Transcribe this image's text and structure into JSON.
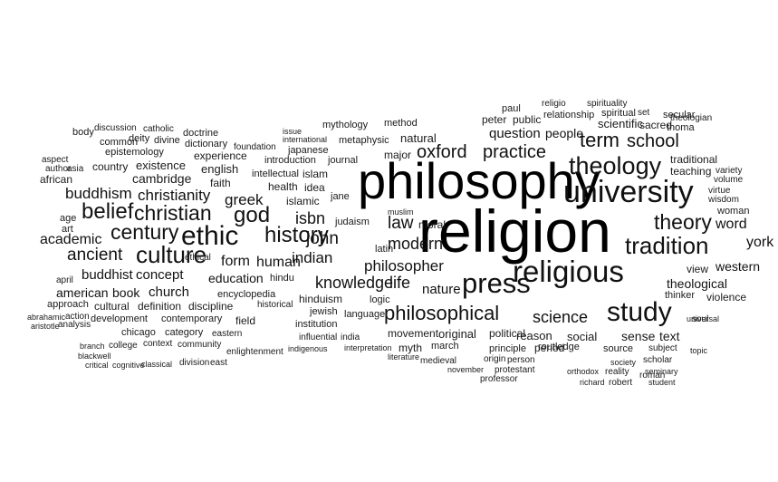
{
  "cloud": {
    "words": {
      "religion": "religion",
      "philosophy": "philosophy",
      "university": "university",
      "religious": "religious",
      "press": "press",
      "ethic": "ethic",
      "theology": "theology",
      "study": "study",
      "history": "history",
      "culture": "culture",
      "christian": "christian",
      "belief": "belief",
      "tradition": "tradition",
      "theory": "theory",
      "philosophical": "philosophical",
      "god": "god",
      "century": "century",
      "science": "science",
      "school": "school",
      "term": "term",
      "oxford": "oxford",
      "practice": "practice",
      "modern": "modern",
      "knowledge": "knowledge",
      "life": "life",
      "ancient": "ancient",
      "christianity": "christianity",
      "buddhism": "buddhism",
      "john": "john",
      "indian": "indian",
      "law": "law",
      "philosopher": "philosopher",
      "nature": "nature",
      "word": "word",
      "york": "york",
      "academic": "academic",
      "greek": "greek",
      "form": "form",
      "human": "human",
      "isbn": "isbn",
      "american": "american",
      "book": "book",
      "church": "church",
      "concept": "concept",
      "buddhist": "buddhist",
      "education": "education",
      "question": "question",
      "people": "people",
      "western": "western",
      "theological": "theological",
      "cambridge": "cambridge",
      "existence": "existence",
      "country": "country",
      "oxford_small": "oxford",
      "sense": "sense",
      "text": "text",
      "social": "social",
      "reason": "reason",
      "period": "period",
      "original": "original",
      "political": "political",
      "movement": "movement",
      "cultural": "cultural",
      "definition": "definition",
      "discipline": "discipline",
      "development": "development",
      "contemporary": "contemporary",
      "field": "field",
      "chicago": "chicago",
      "category": "category",
      "eastern": "eastern",
      "language": "language",
      "hinduism": "hinduism",
      "jewish": "jewish",
      "institution": "institution",
      "logic": "logic",
      "islamic": "islamic",
      "jane": "jane",
      "judaism": "judaism",
      "moral": "moral",
      "natural": "natural",
      "major": "major",
      "islam": "islam",
      "idea": "idea",
      "health": "health",
      "faith": "faith",
      "english": "english",
      "experience": "experience",
      "introduction": "introduction",
      "journal": "journal",
      "japanese": "japanese",
      "metaphysic": "metaphysic",
      "mythology": "mythology",
      "method": "method",
      "peter": "peter",
      "public": "public",
      "paul": "paul",
      "scientific": "scientific",
      "spiritual": "spiritual",
      "traditional": "traditional",
      "teaching": "teaching",
      "sacred": "sacred",
      "violence": "violence",
      "view": "view",
      "thinker": "thinker",
      "woman": "woman",
      "wisdom": "wisdom",
      "virtue": "virtue",
      "variety": "variety",
      "volume": "volume",
      "approach": "approach",
      "analysis": "analysis",
      "action": "action",
      "college": "college",
      "context": "context",
      "community": "community",
      "classical": "classical",
      "division": "division",
      "east": "east",
      "enlightenment": "enlightenment",
      "myth": "myth",
      "march": "march",
      "principle": "principle",
      "routledge": "routledge",
      "person": "person",
      "source": "source",
      "subject": "subject",
      "scholar": "scholar",
      "society": "society",
      "soul": "soul",
      "topic": "topic",
      "universal": "universal",
      "medieval": "medieval",
      "literature": "literature",
      "interpretation": "interpretation",
      "influential": "influential",
      "indigenous": "indigenous",
      "india": "india",
      "historical": "historical",
      "hindu": "hindu",
      "encyclopedia": "encyclopedia",
      "ethical": "ethical",
      "african": "african",
      "aspect": "aspect",
      "author": "author",
      "asia": "asia",
      "age": "age",
      "art": "art",
      "april": "april",
      "aristotle": "aristotle",
      "branch": "branch",
      "blackwell": "blackwell",
      "critical": "critical",
      "cognitive": "cognitive",
      "body": "body",
      "common": "common",
      "deity": "deity",
      "divine": "divine",
      "discussion": "discussion",
      "catholic": "catholic",
      "doctrine": "doctrine",
      "dictionary": "dictionary",
      "foundation": "foundation",
      "epistemology": "epistemology",
      "intellectual": "intellectual",
      "international": "international",
      "issue": "issue",
      "muslim": "muslim",
      "latin": "latin",
      "question2": "question",
      "relationship": "relationship",
      "religio": "religio",
      "spirituality": "spirituality",
      "set": "set",
      "secular": "secular",
      "theologian": "theologian",
      "thoma": "thoma",
      "protestant": "protestant",
      "professor": "professor",
      "november": "november",
      "reality": "reality",
      "robert": "robert",
      "roman": "roman",
      "seminary": "seminary",
      "student": "student",
      "richard": "richard",
      "orthodox": "orthodox",
      "origin": "origin",
      "abrahamic": "abrahamic"
    }
  }
}
